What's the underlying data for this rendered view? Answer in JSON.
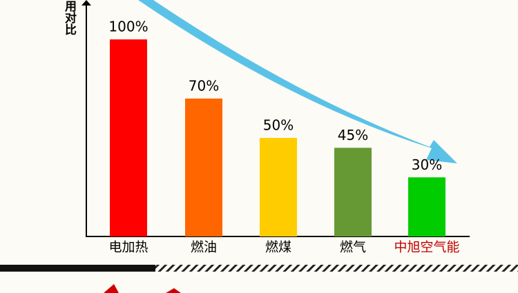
{
  "chart_data": {
    "type": "bar",
    "y_label": "运行费用对比",
    "categories": [
      "电加热",
      "燃油",
      "燃煤",
      "燃气",
      "中旭空气能"
    ],
    "values": [
      100,
      70,
      50,
      45,
      30
    ],
    "value_labels": [
      "100%",
      "70%",
      "50%",
      "45%",
      "30%"
    ],
    "colors": [
      "#ff0000",
      "#ff6600",
      "#ffcc00",
      "#669933",
      "#00cc00"
    ],
    "label_colors": [
      "#000000",
      "#000000",
      "#000000",
      "#000000",
      "#c00000"
    ],
    "ylim": [
      0,
      120
    ]
  }
}
